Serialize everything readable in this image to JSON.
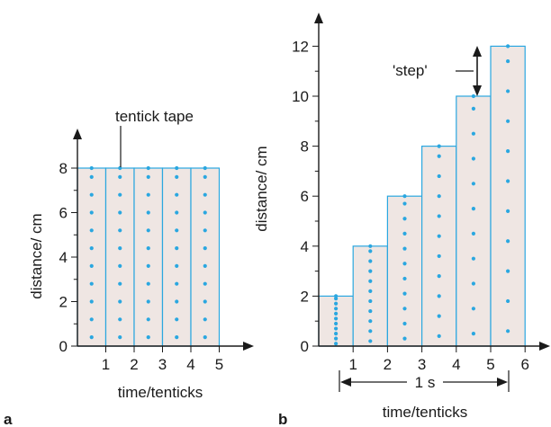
{
  "colors": {
    "bar_fill": "#efe6e3",
    "bar_stroke": "#2aa7e0",
    "dot": "#2aa7e0",
    "axis": "#1a1a1a"
  },
  "chart_data": [
    {
      "type": "bar",
      "panel_label": "a",
      "xlabel": "time/tenticks",
      "ylabel": "distance/ cm",
      "annotation": "tentick tape",
      "x_ticks": [
        "1",
        "2",
        "3",
        "4",
        "5"
      ],
      "y_ticks": [
        "0",
        "2",
        "4",
        "6",
        "8"
      ],
      "ylim": [
        0,
        9.5
      ],
      "xlim": [
        0,
        5.8
      ],
      "categories": [
        "1",
        "2",
        "3",
        "4",
        "5"
      ],
      "values": [
        8,
        8,
        8,
        8,
        8
      ],
      "dots_per_strip": [
        10,
        10,
        10,
        10,
        10
      ]
    },
    {
      "type": "bar",
      "panel_label": "b",
      "xlabel": "time/tenticks",
      "ylabel": "distance/ cm",
      "annotation": "'step'",
      "bracket_label": "1 s",
      "x_ticks": [
        "1",
        "2",
        "3",
        "4",
        "5",
        "6"
      ],
      "y_ticks": [
        "0",
        "2",
        "4",
        "6",
        "8",
        "10",
        "12"
      ],
      "ylim": [
        0,
        13.2
      ],
      "xlim": [
        0,
        6.7
      ],
      "categories": [
        "1",
        "2",
        "3",
        "4",
        "5",
        "6"
      ],
      "values": [
        2,
        4,
        6,
        8,
        10,
        12
      ],
      "dots_per_strip": [
        10,
        10,
        10,
        10,
        10,
        10
      ]
    }
  ]
}
